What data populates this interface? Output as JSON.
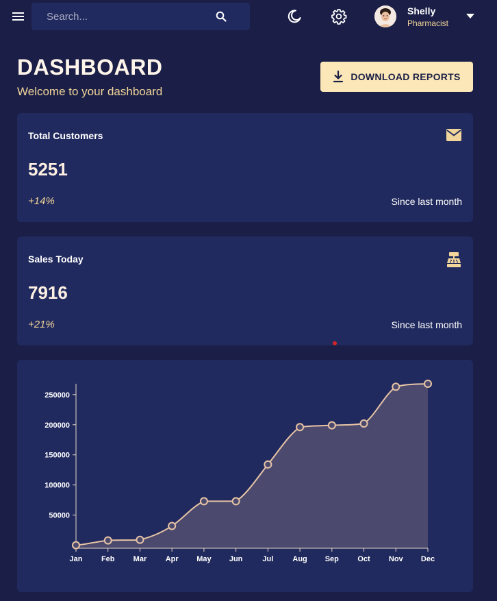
{
  "header": {
    "search": {
      "placeholder": "Search..."
    },
    "user": {
      "name": "Shelly",
      "role": "Pharmacist"
    }
  },
  "page": {
    "title": "DASHBOARD",
    "subtitle": "Welcome to your dashboard",
    "download_label": "DOWNLOAD REPORTS"
  },
  "cards": [
    {
      "title": "Total Customers",
      "value": "5251",
      "change": "+14%",
      "since": "Since last month",
      "icon": "mail-icon"
    },
    {
      "title": "Sales Today",
      "value": "7916",
      "change": "+21%",
      "since": "Since last month",
      "icon": "cash-register-icon"
    }
  ],
  "colors": {
    "background": "#1b1f47",
    "card": "#212a5e",
    "accent": "#f1d59a",
    "button": "#fbe7b8",
    "line": "#e8c4a6",
    "area": "#4b4a6e"
  },
  "chart_data": {
    "type": "area",
    "title": "",
    "xlabel": "",
    "ylabel": "",
    "categories": [
      "Jan",
      "Feb",
      "Mar",
      "Apr",
      "May",
      "Jun",
      "Jul",
      "Aug",
      "Sep",
      "Oct",
      "Nov",
      "Dec"
    ],
    "values": [
      0,
      8000,
      9000,
      32000,
      73000,
      73000,
      134000,
      196000,
      199000,
      202000,
      263000,
      268000
    ],
    "yticks": [
      50000,
      100000,
      150000,
      200000,
      250000
    ],
    "ylim": [
      -5000,
      268000
    ],
    "grid": false
  }
}
